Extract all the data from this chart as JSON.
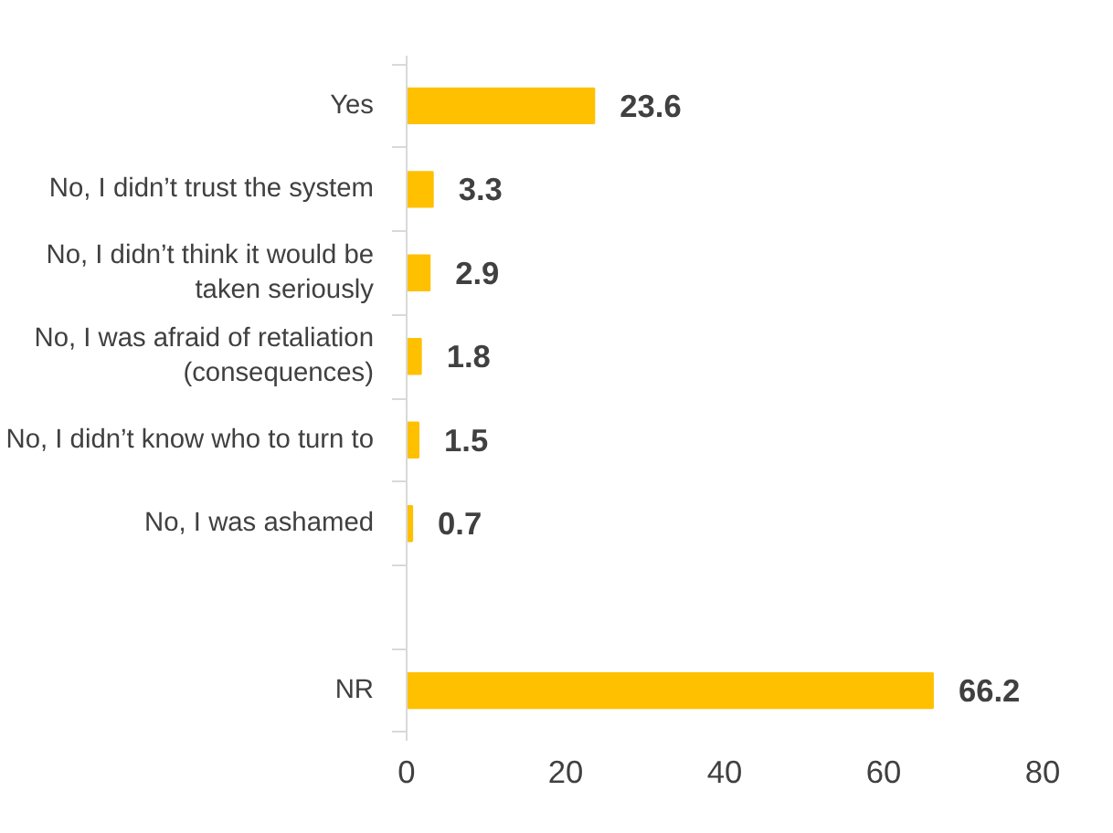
{
  "chart_data": {
    "type": "bar",
    "orientation": "horizontal",
    "categories": [
      "Yes",
      "No, I didn’t trust the system",
      "No, I didn’t think it would be\ntaken seriously",
      "No, I was afraid of retaliation\n(consequences)",
      "No, I didn’t know who to turn to",
      "No, I was ashamed",
      null,
      "NR"
    ],
    "values": [
      23.6,
      3.3,
      2.9,
      1.8,
      1.5,
      0.7,
      null,
      66.2
    ],
    "color": "#ffc000",
    "xlim": [
      0,
      80
    ],
    "xticks": [
      0,
      20,
      40,
      60,
      80
    ],
    "grid": false,
    "data_labels": true
  }
}
